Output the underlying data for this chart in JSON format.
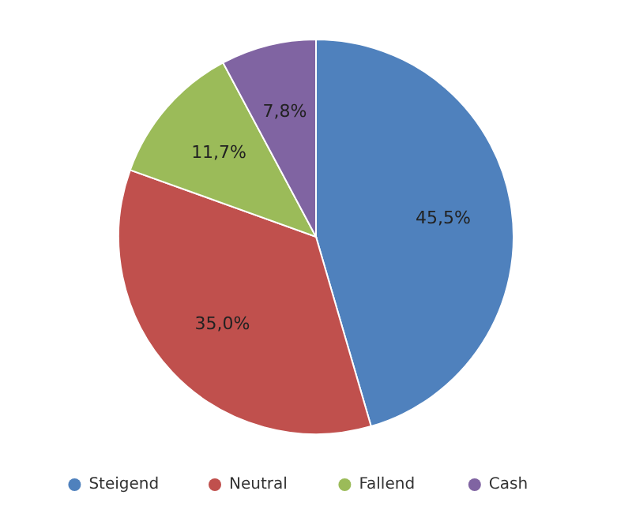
{
  "chart_data": {
    "type": "pie",
    "categories": [
      "Steigend",
      "Neutral",
      "Fallend",
      "Cash"
    ],
    "values": [
      45.5,
      35.0,
      11.7,
      7.8
    ],
    "colors": [
      "#4f81bd",
      "#c0504d",
      "#9bbb59",
      "#8064a2"
    ],
    "value_labels": [
      "45,5%",
      "35,0%",
      "11,7%",
      "7,8%"
    ],
    "legend": "bottom"
  }
}
